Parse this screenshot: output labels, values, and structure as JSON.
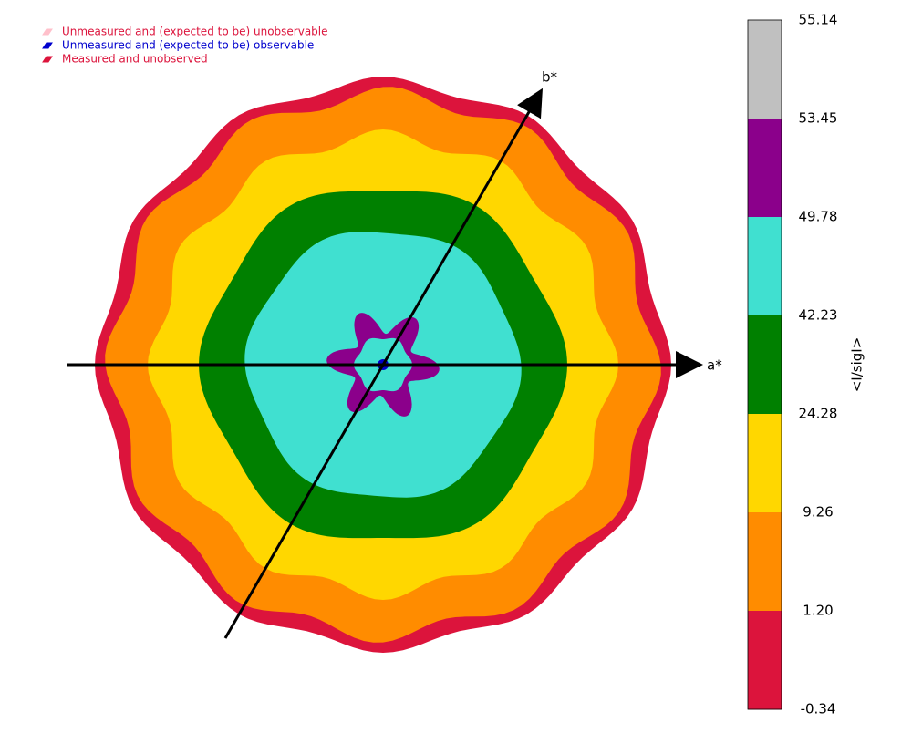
{
  "legend": [
    {
      "label": "Unmeasured and (expected to be) unobservable",
      "color": "#dc143c",
      "marker": "#ffc0cb"
    },
    {
      "label": "Unmeasured and (expected to be) observable",
      "color": "#0000cd",
      "marker": "#0000cd"
    },
    {
      "label": "Measured and unobserved",
      "color": "#dc143c",
      "marker": "#dc143c"
    }
  ],
  "axes": {
    "a": "a*",
    "b": "b*"
  },
  "colorbar": {
    "label": "<I/sigI>",
    "ticks": [
      "55.14",
      "53.45",
      "49.78",
      "42.23",
      "24.28",
      "9.26",
      "1.20",
      "-0.34"
    ],
    "colors": [
      "#c0c0c0",
      "#8b008b",
      "#40e0d0",
      "#008000",
      "#ffd700",
      "#ff8c00",
      "#dc143c"
    ]
  }
}
